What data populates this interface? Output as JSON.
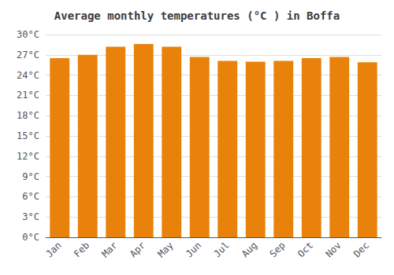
{
  "chart_data": {
    "type": "bar",
    "title": "Average monthly temperatures (°C ) in Boffa",
    "categories": [
      "Jan",
      "Feb",
      "Mar",
      "Apr",
      "May",
      "Jun",
      "Jul",
      "Aug",
      "Sep",
      "Oct",
      "Nov",
      "Dec"
    ],
    "values": [
      26.5,
      27.0,
      28.2,
      28.6,
      28.2,
      26.7,
      26.1,
      26.0,
      26.1,
      26.5,
      26.7,
      25.9
    ],
    "color": "#E8820A",
    "ylim": [
      0,
      30
    ],
    "yticks": [
      {
        "value": 0,
        "label": "0°C"
      },
      {
        "value": 3,
        "label": "3°C"
      },
      {
        "value": 6,
        "label": "6°C"
      },
      {
        "value": 9,
        "label": "9°C"
      },
      {
        "value": 12,
        "label": "12°C"
      },
      {
        "value": 15,
        "label": "15°C"
      },
      {
        "value": 18,
        "label": "18°C"
      },
      {
        "value": 21,
        "label": "21°C"
      },
      {
        "value": 24,
        "label": "24°C"
      },
      {
        "value": 27,
        "label": "27°C"
      },
      {
        "value": 30,
        "label": "30°C"
      }
    ],
    "grid": true
  }
}
